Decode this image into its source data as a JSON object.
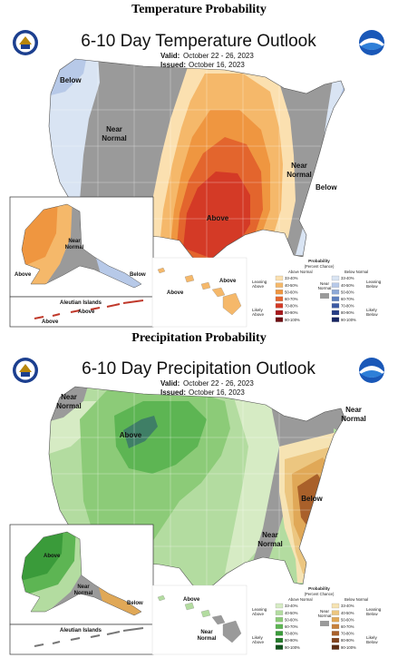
{
  "temperature": {
    "section_title": "Temperature Probability",
    "map_title": "6-10 Day Temperature Outlook",
    "valid_label": "Valid:",
    "valid_value": "October 22 - 26, 2023",
    "issued_label": "Issued:",
    "issued_value": "October 16, 2023",
    "labels": {
      "below_nw": "Below",
      "near_normal_w": "Near\nNormal",
      "near_normal_e": "Near\nNormal",
      "below_e": "Below",
      "above_center": "Above",
      "ak_near": "Near\nNormal",
      "ak_above": "Above",
      "ak_below": "Below",
      "aleutian": "Aleutian Islands",
      "aleutian_above": "Above",
      "aleutian_above2": "Above",
      "hi_above": "Above",
      "hi_above2": "Above"
    },
    "legend": {
      "title": "Probability",
      "subtitle": "(Percent Chance)",
      "col_left": "Above Normal",
      "col_right": "Below Normal",
      "near_label": "Near\nNormal",
      "leaning_left": "Leaning\nAbove",
      "likely_left": "Likely\nAbove",
      "leaning_right": "Leaning\nBelow",
      "likely_right": "Likely\nBelow",
      "left_ranges": [
        "33-40%",
        "40-50%",
        "50-60%",
        "60-70%",
        "70-80%",
        "80-90%",
        "90-100%"
      ],
      "right_ranges": [
        "33-40%",
        "40-50%",
        "50-60%",
        "60-70%",
        "70-80%",
        "80-90%",
        "90-100%"
      ],
      "left_colors": [
        "#fbe0b0",
        "#f5b86a",
        "#ef9640",
        "#e3652d",
        "#d43a26",
        "#a8181c",
        "#6e0d12"
      ],
      "right_colors": [
        "#d9e4f3",
        "#b7c9e8",
        "#8ea9d6",
        "#5d7fbd",
        "#3c5aa3",
        "#263d85",
        "#172563"
      ],
      "near_color": "#9a9a9a"
    }
  },
  "precipitation": {
    "section_title": "Precipitation Probability",
    "map_title": "6-10 Day Precipitation Outlook",
    "valid_label": "Valid:",
    "valid_value": "October 22 - 26, 2023",
    "issued_label": "Issued:",
    "issued_value": "October 16, 2023",
    "labels": {
      "near_nw": "Near\nNormal",
      "above_n": "Above",
      "near_ne": "Near\nNormal",
      "below_se": "Below",
      "near_e": "Near\nNormal",
      "ak_above": "Above",
      "ak_near": "Near\nNormal",
      "ak_below": "Below",
      "aleutian": "Aleutian Islands",
      "hi_above": "Above",
      "hi_near": "Near\nNormal"
    },
    "legend": {
      "title": "Probability",
      "subtitle": "(Percent Chance)",
      "col_left": "Above Normal",
      "col_right": "Below Normal",
      "near_label": "Near\nNormal",
      "leaning_left": "Leaning\nAbove",
      "likely_left": "Likely\nAbove",
      "leaning_right": "Leaning\nBelow",
      "likely_right": "Likely\nBelow",
      "left_ranges": [
        "33-40%",
        "40-50%",
        "50-60%",
        "60-70%",
        "70-80%",
        "80-90%",
        "90-100%"
      ],
      "right_ranges": [
        "33-40%",
        "40-50%",
        "50-60%",
        "60-70%",
        "70-80%",
        "80-90%",
        "90-100%"
      ],
      "left_colors": [
        "#d6ebc4",
        "#b3dca0",
        "#8ccb78",
        "#5db553",
        "#3a9b3a",
        "#237a2a",
        "#11531c"
      ],
      "right_colors": [
        "#f6e3b3",
        "#ecc680",
        "#e0a857",
        "#c7813c",
        "#a9602a",
        "#82441f",
        "#5c2d15"
      ],
      "near_color": "#9a9a9a"
    }
  }
}
